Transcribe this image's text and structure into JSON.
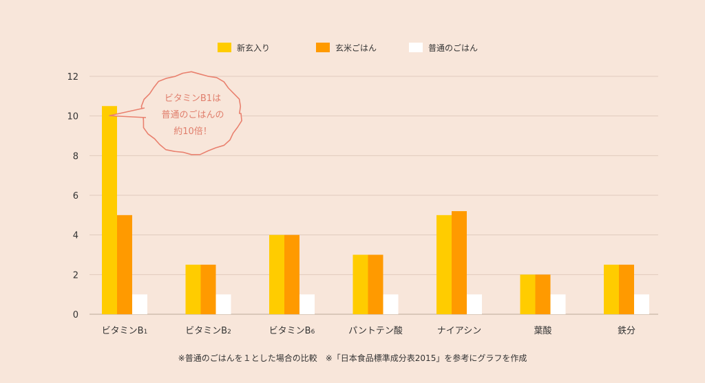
{
  "chart_data": {
    "type": "bar",
    "categories": [
      "ビタミンB1",
      "ビタミンB2",
      "ビタミンB6",
      "パントテン酸",
      "ナイアシン",
      "葉酸",
      "鉄分"
    ],
    "category_labels": [
      {
        "main": "ビタミンB",
        "sub": "1"
      },
      {
        "main": "ビタミンB",
        "sub": "2"
      },
      {
        "main": "ビタミンB",
        "sub": "6"
      },
      {
        "main": "パントテン酸",
        "sub": ""
      },
      {
        "main": "ナイアシン",
        "sub": ""
      },
      {
        "main": "葉酸",
        "sub": ""
      },
      {
        "main": "鉄分",
        "sub": ""
      }
    ],
    "series": [
      {
        "name": "新玄入り",
        "color": "#ffcc00",
        "values": [
          10.5,
          2.5,
          4,
          3,
          5,
          2,
          2.5
        ]
      },
      {
        "name": "玄米ごはん",
        "color": "#ff9a00",
        "values": [
          5,
          2.5,
          4,
          3,
          5.2,
          2,
          2.5
        ]
      },
      {
        "name": "普通のごはん",
        "color": "#ffffff",
        "values": [
          1,
          1,
          1,
          1,
          1,
          1,
          1
        ]
      }
    ],
    "ylim": [
      0,
      12
    ],
    "yticks": [
      0,
      2,
      4,
      6,
      8,
      10,
      12
    ],
    "grid": true,
    "legend_position": "top",
    "annotation": {
      "lines": [
        "ビタミンB1は",
        "普通のごはんの",
        "約10倍！"
      ],
      "target_category": "ビタミンB1",
      "target_series": "新玄入り",
      "color": "#e9806e"
    }
  },
  "footnote": "※普通のごはんを１とした場合の比較　※「日本食品標準成分表2015」を参考にグラフを作成",
  "colors": {
    "background": "#f8e6da",
    "gridline": "#e0cbbd",
    "axis": "#bda999"
  }
}
